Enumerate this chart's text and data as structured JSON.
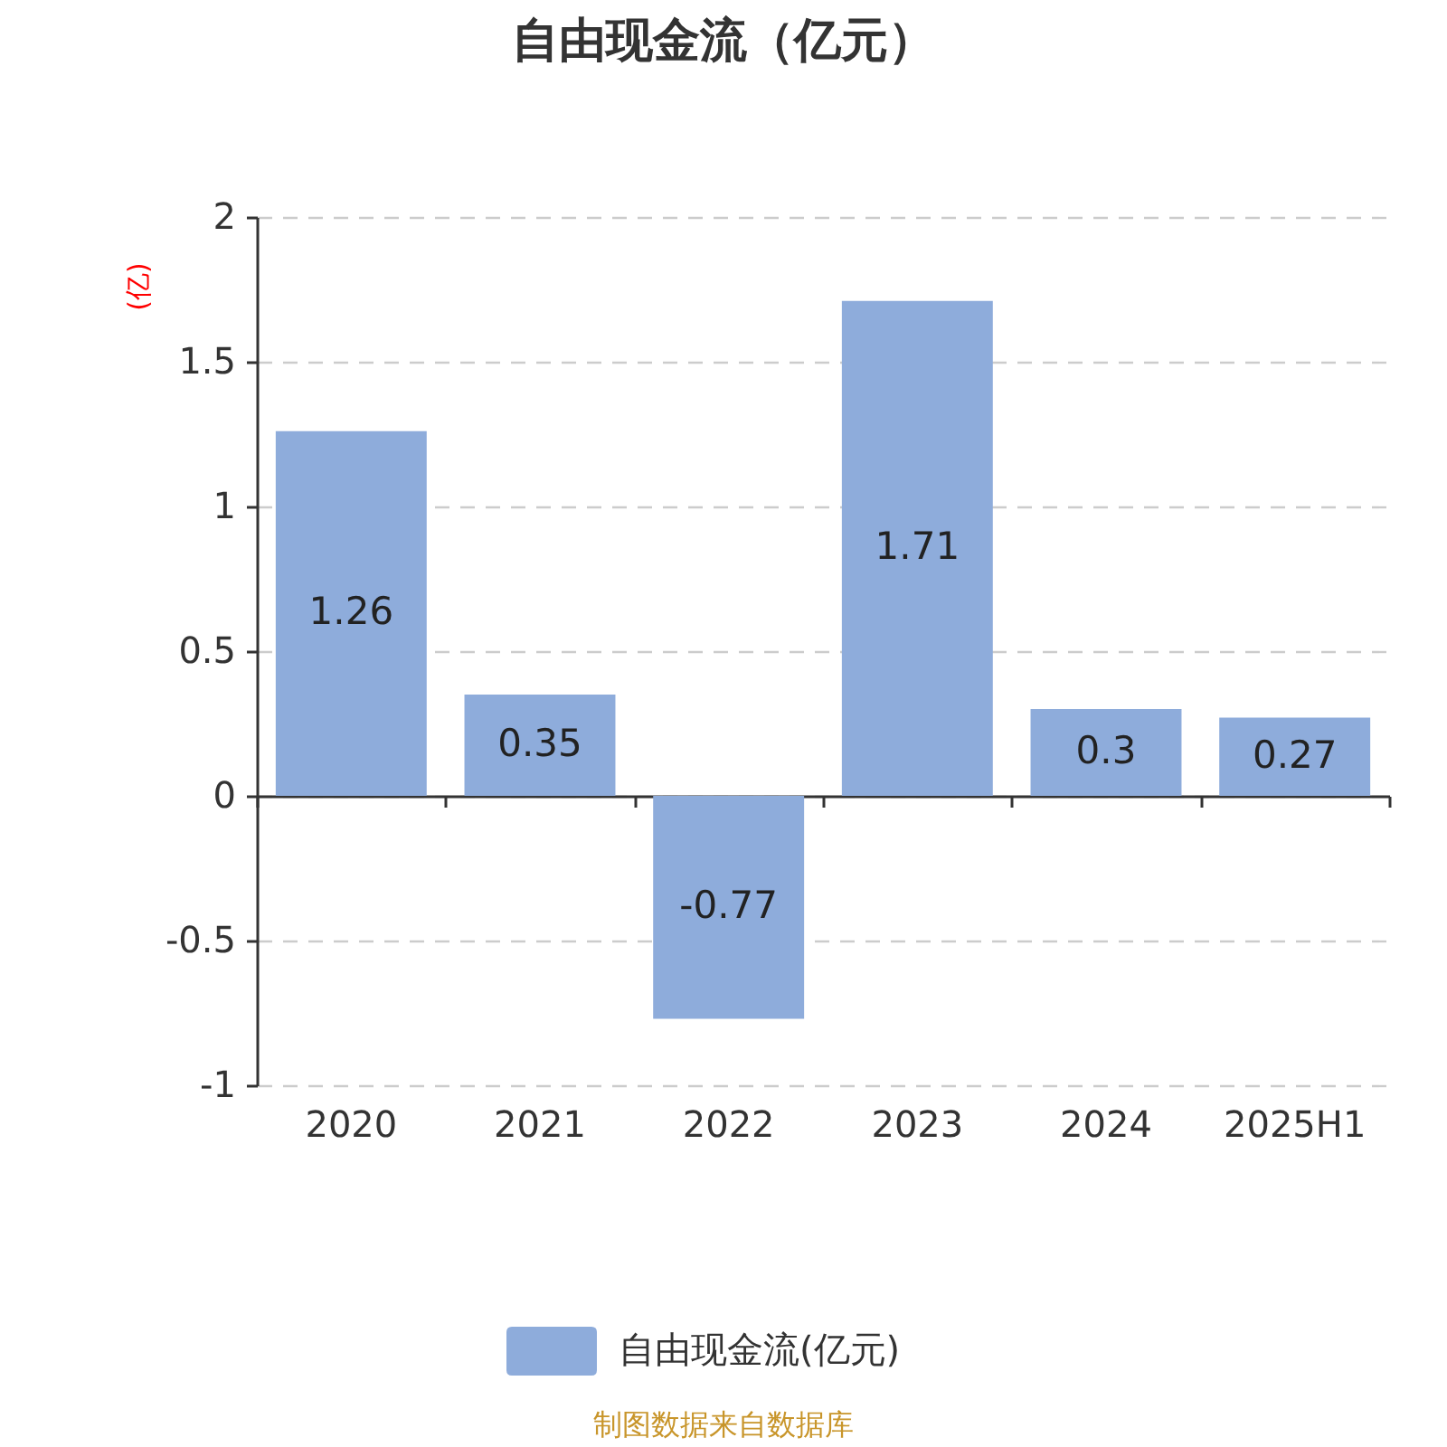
{
  "chart_data": {
    "type": "bar",
    "title": "自由现金流（亿元）",
    "ylabel": "(亿)",
    "categories": [
      "2020",
      "2021",
      "2022",
      "2023",
      "2024",
      "2025H1"
    ],
    "series": [
      {
        "name": "自由现金流(亿元)",
        "color": "#8eacdb",
        "values": [
          1.26,
          0.35,
          -0.77,
          1.71,
          0.3,
          0.27
        ]
      }
    ],
    "ylim": [
      -1,
      2
    ],
    "yticks": [
      -1,
      -0.5,
      0,
      0.5,
      1,
      1.5,
      2
    ],
    "grid": "y",
    "legend": "bottom",
    "data_labels": true,
    "annotations": [
      "制图数据来自数据库"
    ]
  }
}
